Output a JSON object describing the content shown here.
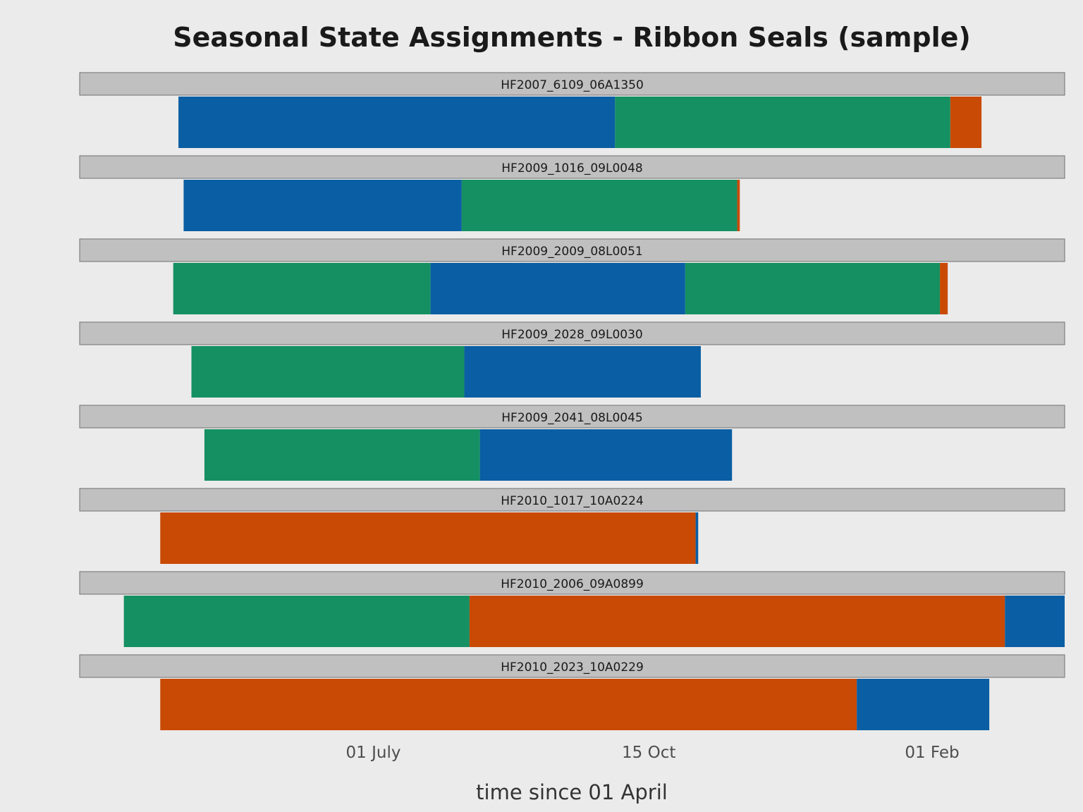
{
  "chart_data": {
    "type": "bar",
    "subtype": "faceted-horizontal-stacked-timeline",
    "title": "Seasonal State Assignments - Ribbon Seals (sample)",
    "xlabel": "time since 01 April",
    "ylabel": "",
    "x_unit": "days since 01 April",
    "xlim": [
      -22,
      357
    ],
    "x_ticks": [
      {
        "value": 91,
        "label": "01 July"
      },
      {
        "value": 197,
        "label": "15 Oct"
      },
      {
        "value": 306,
        "label": "01 Feb"
      }
    ],
    "grid": false,
    "legend": "none",
    "state_colors": {
      "blue": "#0a5ea3",
      "green": "#159062",
      "orange": "#c94a05"
    },
    "panels": [
      {
        "id": "HF2007_6109_06A1350",
        "segments": [
          {
            "state": "blue",
            "start": 16,
            "end": 184
          },
          {
            "state": "green",
            "start": 184,
            "end": 313
          },
          {
            "state": "orange",
            "start": 313,
            "end": 325
          }
        ]
      },
      {
        "id": "HF2009_1016_09L0048",
        "segments": [
          {
            "state": "blue",
            "start": 18,
            "end": 125
          },
          {
            "state": "green",
            "start": 125,
            "end": 231
          },
          {
            "state": "orange",
            "start": 231,
            "end": 232
          }
        ]
      },
      {
        "id": "HF2009_2009_08L0051",
        "segments": [
          {
            "state": "green",
            "start": 14,
            "end": 113
          },
          {
            "state": "blue",
            "start": 113,
            "end": 211
          },
          {
            "state": "green",
            "start": 211,
            "end": 309
          },
          {
            "state": "orange",
            "start": 309,
            "end": 312
          }
        ]
      },
      {
        "id": "HF2009_2028_09L0030",
        "segments": [
          {
            "state": "green",
            "start": 21,
            "end": 126
          },
          {
            "state": "blue",
            "start": 126,
            "end": 217
          }
        ]
      },
      {
        "id": "HF2009_2041_08L0045",
        "segments": [
          {
            "state": "green",
            "start": 26,
            "end": 132
          },
          {
            "state": "blue",
            "start": 132,
            "end": 229
          }
        ]
      },
      {
        "id": "HF2010_1017_10A0224",
        "segments": [
          {
            "state": "orange",
            "start": 9,
            "end": 215
          },
          {
            "state": "blue",
            "start": 215,
            "end": 216
          }
        ]
      },
      {
        "id": "HF2010_2006_09A0899",
        "segments": [
          {
            "state": "green",
            "start": -5,
            "end": 128
          },
          {
            "state": "orange",
            "start": 128,
            "end": 334
          },
          {
            "state": "blue",
            "start": 334,
            "end": 357
          }
        ]
      },
      {
        "id": "HF2010_2023_10A0229",
        "segments": [
          {
            "state": "orange",
            "start": 9,
            "end": 277
          },
          {
            "state": "blue",
            "start": 277,
            "end": 328
          }
        ]
      }
    ]
  }
}
